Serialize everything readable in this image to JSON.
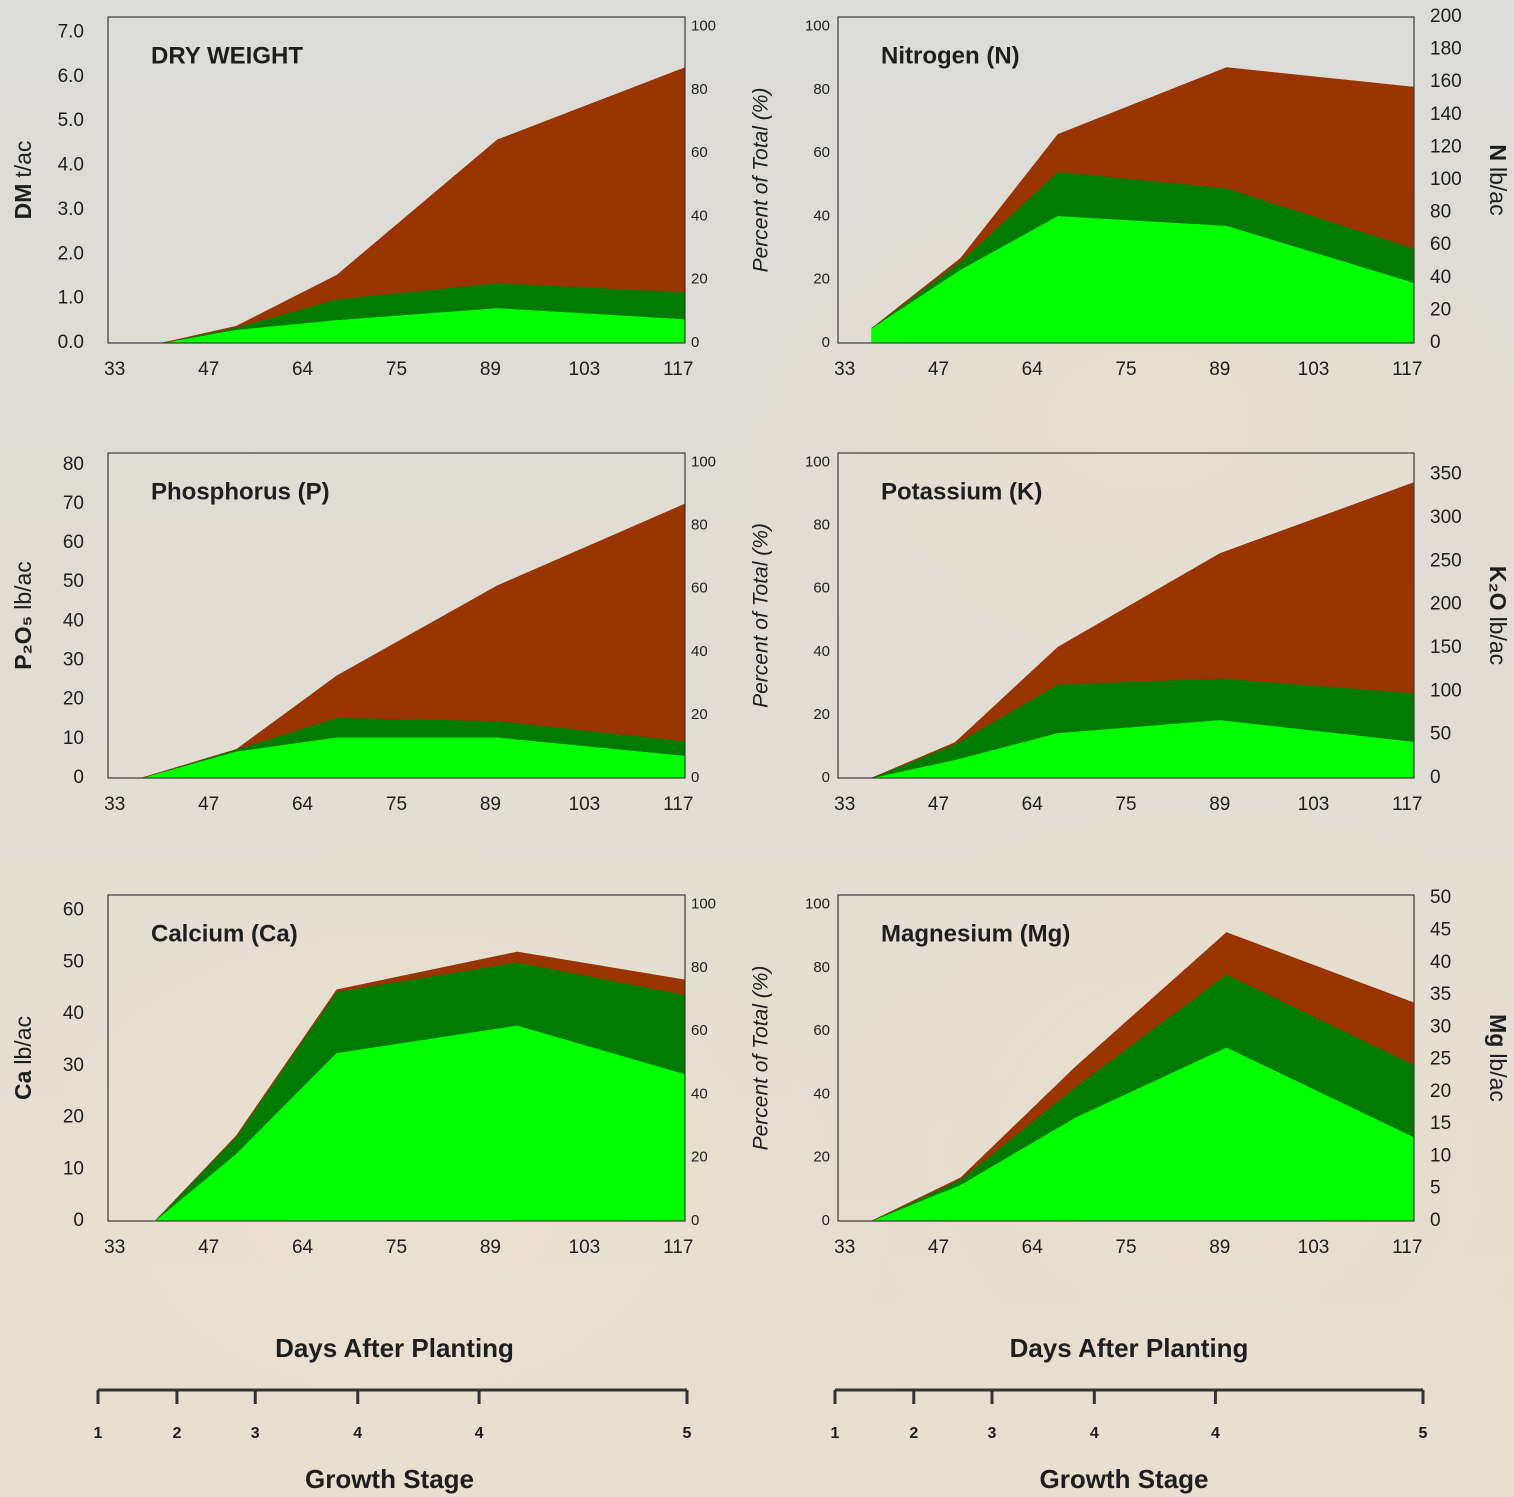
{
  "chart_data": [
    {
      "type": "area",
      "stacked": true,
      "title": "DRY WEIGHT",
      "y_label_bold": "DM",
      "y_label": "t/ac",
      "y_side": "left",
      "x": [
        40,
        52,
        68,
        90,
        118
      ],
      "xlim": [
        32,
        118
      ],
      "xticks": [
        33,
        47,
        64,
        75,
        89,
        103,
        117
      ],
      "ylim": [
        0,
        7.35
      ],
      "yticks": [
        {
          "value": 0,
          "label": "0.0"
        },
        {
          "value": 1,
          "label": "1.0"
        },
        {
          "value": 2,
          "label": "2.0"
        },
        {
          "value": 3,
          "label": "3.0"
        },
        {
          "value": 4,
          "label": "4.0"
        },
        {
          "value": 5,
          "label": "5.0"
        },
        {
          "value": 6,
          "label": "6.0"
        },
        {
          "value": 7,
          "label": "7.0"
        }
      ],
      "y2lim": [
        0,
        103
      ],
      "y2ticks": [
        0,
        20,
        40,
        60,
        80,
        100
      ],
      "series": [
        {
          "color": "#00ff00",
          "values": [
            0,
            0.3,
            0.52,
            0.79,
            0.54
          ]
        },
        {
          "color": "#007a00",
          "values": [
            0,
            0.05,
            0.47,
            0.56,
            0.61
          ]
        },
        {
          "color": "#993300",
          "values": [
            0,
            0.03,
            0.54,
            3.23,
            5.06
          ]
        }
      ]
    },
    {
      "type": "area",
      "stacked": true,
      "title": "Nitrogen (N)",
      "y_label_bold": "N",
      "y_label": "lb/ac",
      "y_side": "right",
      "y2_label": "Percent of Total (%)",
      "x": [
        37,
        51,
        67,
        90,
        118
      ],
      "xlim": [
        32,
        118
      ],
      "xticks": [
        33,
        47,
        64,
        75,
        89,
        103,
        117
      ],
      "ylim": [
        0,
        200
      ],
      "yticks": [
        0,
        20,
        40,
        60,
        80,
        100,
        120,
        140,
        160,
        180,
        200
      ],
      "y2lim": [
        0,
        103
      ],
      "y2ticks": [
        0,
        20,
        40,
        60,
        80,
        100
      ],
      "series": [
        {
          "color": "#00ff00",
          "values": [
            9,
            45,
            78,
            72,
            37
          ]
        },
        {
          "color": "#007a00",
          "values": [
            0,
            5,
            27,
            23,
            21
          ]
        },
        {
          "color": "#993300",
          "values": [
            0,
            2,
            23,
            74,
            99
          ]
        }
      ]
    },
    {
      "type": "area",
      "stacked": true,
      "title": "Phosphorus (P)",
      "y_label_bold": "P₂O₅",
      "y_label": "lb/ac",
      "y_side": "left",
      "x": [
        37,
        52,
        68,
        90,
        118
      ],
      "xlim": [
        32,
        118
      ],
      "xticks": [
        33,
        47,
        64,
        75,
        89,
        103,
        117
      ],
      "ylim": [
        0,
        83
      ],
      "yticks": [
        0,
        10,
        20,
        30,
        40,
        50,
        60,
        70,
        80
      ],
      "y2lim": [
        0,
        103
      ],
      "y2ticks": [
        0,
        20,
        40,
        60,
        80,
        100
      ],
      "series": [
        {
          "color": "#00ff00",
          "values": [
            0,
            6.8,
            10.4,
            10.4,
            5.7
          ]
        },
        {
          "color": "#007a00",
          "values": [
            0,
            0.5,
            5,
            4.2,
            3.7
          ]
        },
        {
          "color": "#993300",
          "values": [
            0,
            0,
            10.7,
            34.5,
            60.6
          ]
        }
      ]
    },
    {
      "type": "area",
      "stacked": true,
      "title": "Potassium (K)",
      "y_label_bold": "K₂O",
      "y_label": "lb/ac",
      "y_side": "right",
      "y2_label": "Percent of Total (%)",
      "x": [
        37,
        50,
        67,
        89,
        118
      ],
      "xlim": [
        32,
        118
      ],
      "xticks": [
        33,
        47,
        64,
        75,
        89,
        103,
        117
      ],
      "ylim": [
        0,
        375
      ],
      "yticks": [
        0,
        50,
        100,
        150,
        200,
        250,
        300,
        350
      ],
      "y2lim": [
        0,
        103
      ],
      "y2ticks": [
        0,
        20,
        40,
        60,
        80,
        100
      ],
      "series": [
        {
          "color": "#00ff00",
          "values": [
            0,
            21,
            52,
            67,
            42
          ]
        },
        {
          "color": "#007a00",
          "values": [
            0,
            18,
            56,
            48,
            56
          ]
        },
        {
          "color": "#993300",
          "values": [
            0,
            2,
            43,
            144,
            243
          ]
        }
      ]
    },
    {
      "type": "area",
      "stacked": true,
      "title": "Calcium (Ca)",
      "y_label_bold": "Ca",
      "y_label": "lb/ac",
      "y_side": "left",
      "x": [
        39,
        52,
        68,
        93,
        118
      ],
      "xlim": [
        32,
        118
      ],
      "xticks": [
        33,
        47,
        64,
        75,
        89,
        103,
        117
      ],
      "ylim": [
        0,
        63
      ],
      "yticks": [
        0,
        10,
        20,
        30,
        40,
        50,
        60
      ],
      "y2lim": [
        0,
        103
      ],
      "y2ticks": [
        0,
        20,
        40,
        60,
        80,
        100
      ],
      "series": [
        {
          "color": "#00ff00",
          "values": [
            0,
            13,
            32.5,
            37.8,
            28.4
          ]
        },
        {
          "color": "#007a00",
          "values": [
            0,
            3.3,
            11.8,
            12.2,
            15.3
          ]
        },
        {
          "color": "#993300",
          "values": [
            0,
            0.2,
            0.4,
            2,
            2.9
          ]
        }
      ]
    },
    {
      "type": "area",
      "stacked": true,
      "title": "Magnesium (Mg)",
      "y_label_bold": "Mg",
      "y_label": "lb/ac",
      "y_side": "right",
      "y2_label": "Percent of Total (%)",
      "x": [
        37,
        51,
        69,
        90,
        118
      ],
      "xlim": [
        32,
        118
      ],
      "xticks": [
        33,
        47,
        64,
        75,
        89,
        103,
        117
      ],
      "ylim": [
        0,
        50.5
      ],
      "yticks": [
        0,
        5,
        10,
        15,
        20,
        25,
        30,
        35,
        40,
        45,
        50
      ],
      "y2lim": [
        0,
        103
      ],
      "y2ticks": [
        0,
        20,
        40,
        60,
        80,
        100
      ],
      "series": [
        {
          "color": "#00ff00",
          "values": [
            0,
            5.6,
            16,
            26.9,
            13
          ]
        },
        {
          "color": "#007a00",
          "values": [
            0,
            0.8,
            4.7,
            11.3,
            11.2
          ]
        },
        {
          "color": "#993300",
          "values": [
            0,
            0.3,
            3.1,
            6.5,
            9.6
          ]
        }
      ]
    }
  ],
  "axis_captions": [
    {
      "x_label": "Days After Planting",
      "stage_label": "Growth Stage",
      "stages": [
        1,
        2,
        3,
        4,
        4,
        5
      ]
    },
    {
      "x_label": "Days After Planting",
      "stage_label": "Growth Stage",
      "stages": [
        1,
        2,
        3,
        4,
        4,
        5
      ]
    }
  ]
}
